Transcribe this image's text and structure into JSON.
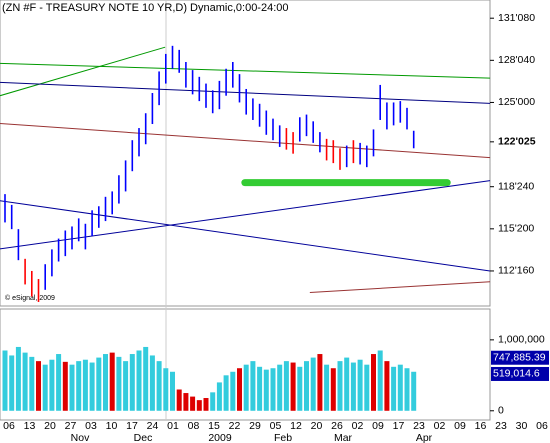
{
  "chart_data": {
    "type": "ohlc",
    "title": "(ZN #F - TREASURY NOTE 10 YR,D) Dynamic,0:00-24:00",
    "credit": "© eSignal, 2009",
    "high": [
      118.2,
      117.4,
      115.6,
      113.4,
      112.5,
      111.9,
      113.0,
      114.1,
      114.9,
      115.5,
      115.8,
      116.4,
      116.0,
      117.0,
      117.3,
      118.0,
      118.4,
      119.6,
      120.7,
      122.2,
      123.1,
      124.2,
      125.7,
      127.3,
      128.6,
      129.2,
      128.9,
      128.0,
      127.4,
      126.9,
      126.4,
      125.9,
      126.6,
      127.5,
      128.0,
      127.1,
      126.0,
      125.3,
      124.9,
      124.4,
      123.8,
      123.3,
      123.1,
      122.8,
      123.9,
      124.1,
      123.6,
      122.8,
      122.3,
      122.2,
      121.6,
      121.8,
      122.2,
      122.0,
      121.8,
      123.0,
      126.3,
      125.0,
      125.0,
      125.1,
      124.6,
      122.9
    ],
    "low": [
      116.1,
      115.6,
      113.3,
      111.5,
      110.6,
      110.2,
      111.1,
      112.1,
      113.2,
      113.6,
      114.1,
      114.7,
      114.1,
      115.1,
      115.7,
      116.2,
      116.7,
      117.5,
      118.4,
      119.9,
      121.0,
      121.9,
      123.4,
      124.8,
      126.4,
      127.5,
      127.2,
      126.1,
      125.6,
      125.1,
      124.6,
      124.2,
      124.5,
      125.5,
      126.1,
      125.0,
      124.1,
      123.7,
      123.2,
      122.6,
      122.2,
      121.7,
      121.5,
      121.2,
      122.1,
      122.5,
      122.0,
      121.3,
      120.7,
      120.5,
      120.0,
      120.2,
      120.5,
      120.4,
      120.2,
      121.0,
      123.7,
      123.0,
      123.3,
      123.5,
      123.0,
      121.6
    ],
    "colors": [
      "#0000ff",
      "#0000ff",
      "#0000ff",
      "#ff0000",
      "#ff0000",
      "#ff0000",
      "#0000ff",
      "#0000ff",
      "#0000ff",
      "#0000ff",
      "#0000ff",
      "#0000ff",
      "#0000ff",
      "#0000ff",
      "#0000ff",
      "#0000ff",
      "#0000ff",
      "#0000ff",
      "#0000ff",
      "#0000ff",
      "#0000ff",
      "#0000ff",
      "#0000ff",
      "#0000ff",
      "#0000ff",
      "#0000ff",
      "#0000ff",
      "#0000ff",
      "#0000ff",
      "#0000ff",
      "#0000ff",
      "#0000ff",
      "#0000ff",
      "#0000ff",
      "#0000ff",
      "#0000ff",
      "#0000ff",
      "#0000ff",
      "#0000ff",
      "#0000ff",
      "#0000ff",
      "#0000ff",
      "#ff0000",
      "#ff0000",
      "#0000ff",
      "#0000ff",
      "#0000ff",
      "#0000ff",
      "#ff0000",
      "#ff0000",
      "#ff0000",
      "#0000ff",
      "#ff0000",
      "#0000ff",
      "#0000ff",
      "#0000ff",
      "#0000ff",
      "#0000ff",
      "#0000ff",
      "#0000ff",
      "#0000ff",
      "#0000ff"
    ],
    "ylim": [
      109.9,
      132.6
    ],
    "yticks": [
      {
        "value": 131.25,
        "label": "131'080"
      },
      {
        "value": 128.125,
        "label": "128'040"
      },
      {
        "value": 125,
        "label": "125'000"
      },
      {
        "value": 118.75,
        "label": "118'240"
      },
      {
        "value": 115.625,
        "label": "115'200"
      },
      {
        "value": 112.5,
        "label": "112'160"
      }
    ],
    "last_price": {
      "value": 122.078125,
      "label": "122'025"
    },
    "trendlines": [
      {
        "color": "#009900",
        "from": [
          -0.75,
          125.5
        ],
        "to": [
          23.9,
          129.1
        ],
        "width": 1
      },
      {
        "color": "#009900",
        "from": [
          -0.75,
          127.9
        ],
        "to": [
          72.4,
          126.8
        ],
        "width": 1
      },
      {
        "color": "#000080",
        "from": [
          -0.75,
          126.49
        ],
        "to": [
          72.4,
          124.93
        ],
        "width": 1
      },
      {
        "color": "#993333",
        "from": [
          -0.75,
          123.44
        ],
        "to": [
          72.4,
          120.91
        ],
        "width": 1
      },
      {
        "color": "#000099",
        "from": [
          -0.75,
          117.71
        ],
        "to": [
          72.4,
          112.5
        ],
        "width": 1
      },
      {
        "color": "#000099",
        "from": [
          -0.75,
          114.14
        ],
        "to": [
          72.4,
          119.2
        ],
        "width": 1
      },
      {
        "color": "#993333",
        "from": [
          45.5,
          110.9
        ],
        "to": [
          72.4,
          111.7
        ],
        "width": 1
      },
      {
        "color": "#33cc33",
        "from": [
          35.8,
          119.05
        ],
        "to": [
          66.0,
          119.05
        ],
        "width": 7
      }
    ],
    "volume": [
      850000,
      780000,
      900000,
      820000,
      760000,
      700000,
      650000,
      720000,
      800000,
      690000,
      650000,
      700000,
      720000,
      680000,
      750000,
      800000,
      820000,
      760000,
      700000,
      800000,
      850000,
      900000,
      780000,
      700000,
      600000,
      550000,
      300000,
      250000,
      200000,
      150000,
      180000,
      260000,
      400000,
      500000,
      550000,
      600000,
      650000,
      700000,
      620000,
      580000,
      600000,
      650000,
      700000,
      680000,
      620000,
      700000,
      750000,
      800000,
      650000,
      600000,
      700000,
      750000,
      680000,
      720000,
      650000,
      800000,
      850000,
      700000,
      620000,
      650000,
      600000,
      550000
    ],
    "volume_colors": [
      "#33ccdd",
      "#33ccdd",
      "#33ccdd",
      "#33ccdd",
      "#33ccdd",
      "#dd0000",
      "#33ccdd",
      "#33ccdd",
      "#33ccdd",
      "#dd0000",
      "#33ccdd",
      "#33ccdd",
      "#33ccdd",
      "#33ccdd",
      "#33ccdd",
      "#33ccdd",
      "#dd0000",
      "#33ccdd",
      "#33ccdd",
      "#33ccdd",
      "#33ccdd",
      "#33ccdd",
      "#33ccdd",
      "#33ccdd",
      "#33ccdd",
      "#33ccdd",
      "#dd0000",
      "#dd0000",
      "#dd0000",
      "#dd0000",
      "#dd0000",
      "#33ccdd",
      "#33ccdd",
      "#33ccdd",
      "#33ccdd",
      "#dd0000",
      "#33ccdd",
      "#33ccdd",
      "#33ccdd",
      "#33ccdd",
      "#33ccdd",
      "#33ccdd",
      "#33ccdd",
      "#dd0000",
      "#33ccdd",
      "#33ccdd",
      "#33ccdd",
      "#dd0000",
      "#33ccdd",
      "#dd0000",
      "#33ccdd",
      "#33ccdd",
      "#33ccdd",
      "#33ccdd",
      "#33ccdd",
      "#dd0000",
      "#33ccdd",
      "#dd0000",
      "#33ccdd",
      "#33ccdd",
      "#33ccdd",
      "#33ccdd"
    ],
    "y2lim": [
      -130000,
      1435000
    ],
    "y2ticks": [
      {
        "value": 1000000,
        "label": "1,000,000"
      },
      0
    ],
    "volume_levels": [
      {
        "value": 747885.39,
        "label": "747,885.39",
        "color": "#0000aa"
      },
      {
        "value": 519014.6,
        "label": "519,014.6",
        "color": "#0000aa"
      }
    ],
    "day_labels": [
      "06",
      "13",
      "20",
      "27",
      "03",
      "10",
      "17",
      "24",
      "01",
      "08",
      "15",
      "22",
      "29",
      "05",
      "12",
      "20",
      "26",
      "02",
      "09",
      "17",
      "23",
      "02",
      "09",
      "16",
      "23",
      "30",
      "06"
    ],
    "month_labels": [
      "Nov",
      "Dec",
      "2009",
      "Feb",
      "Mar",
      "Apr"
    ]
  }
}
